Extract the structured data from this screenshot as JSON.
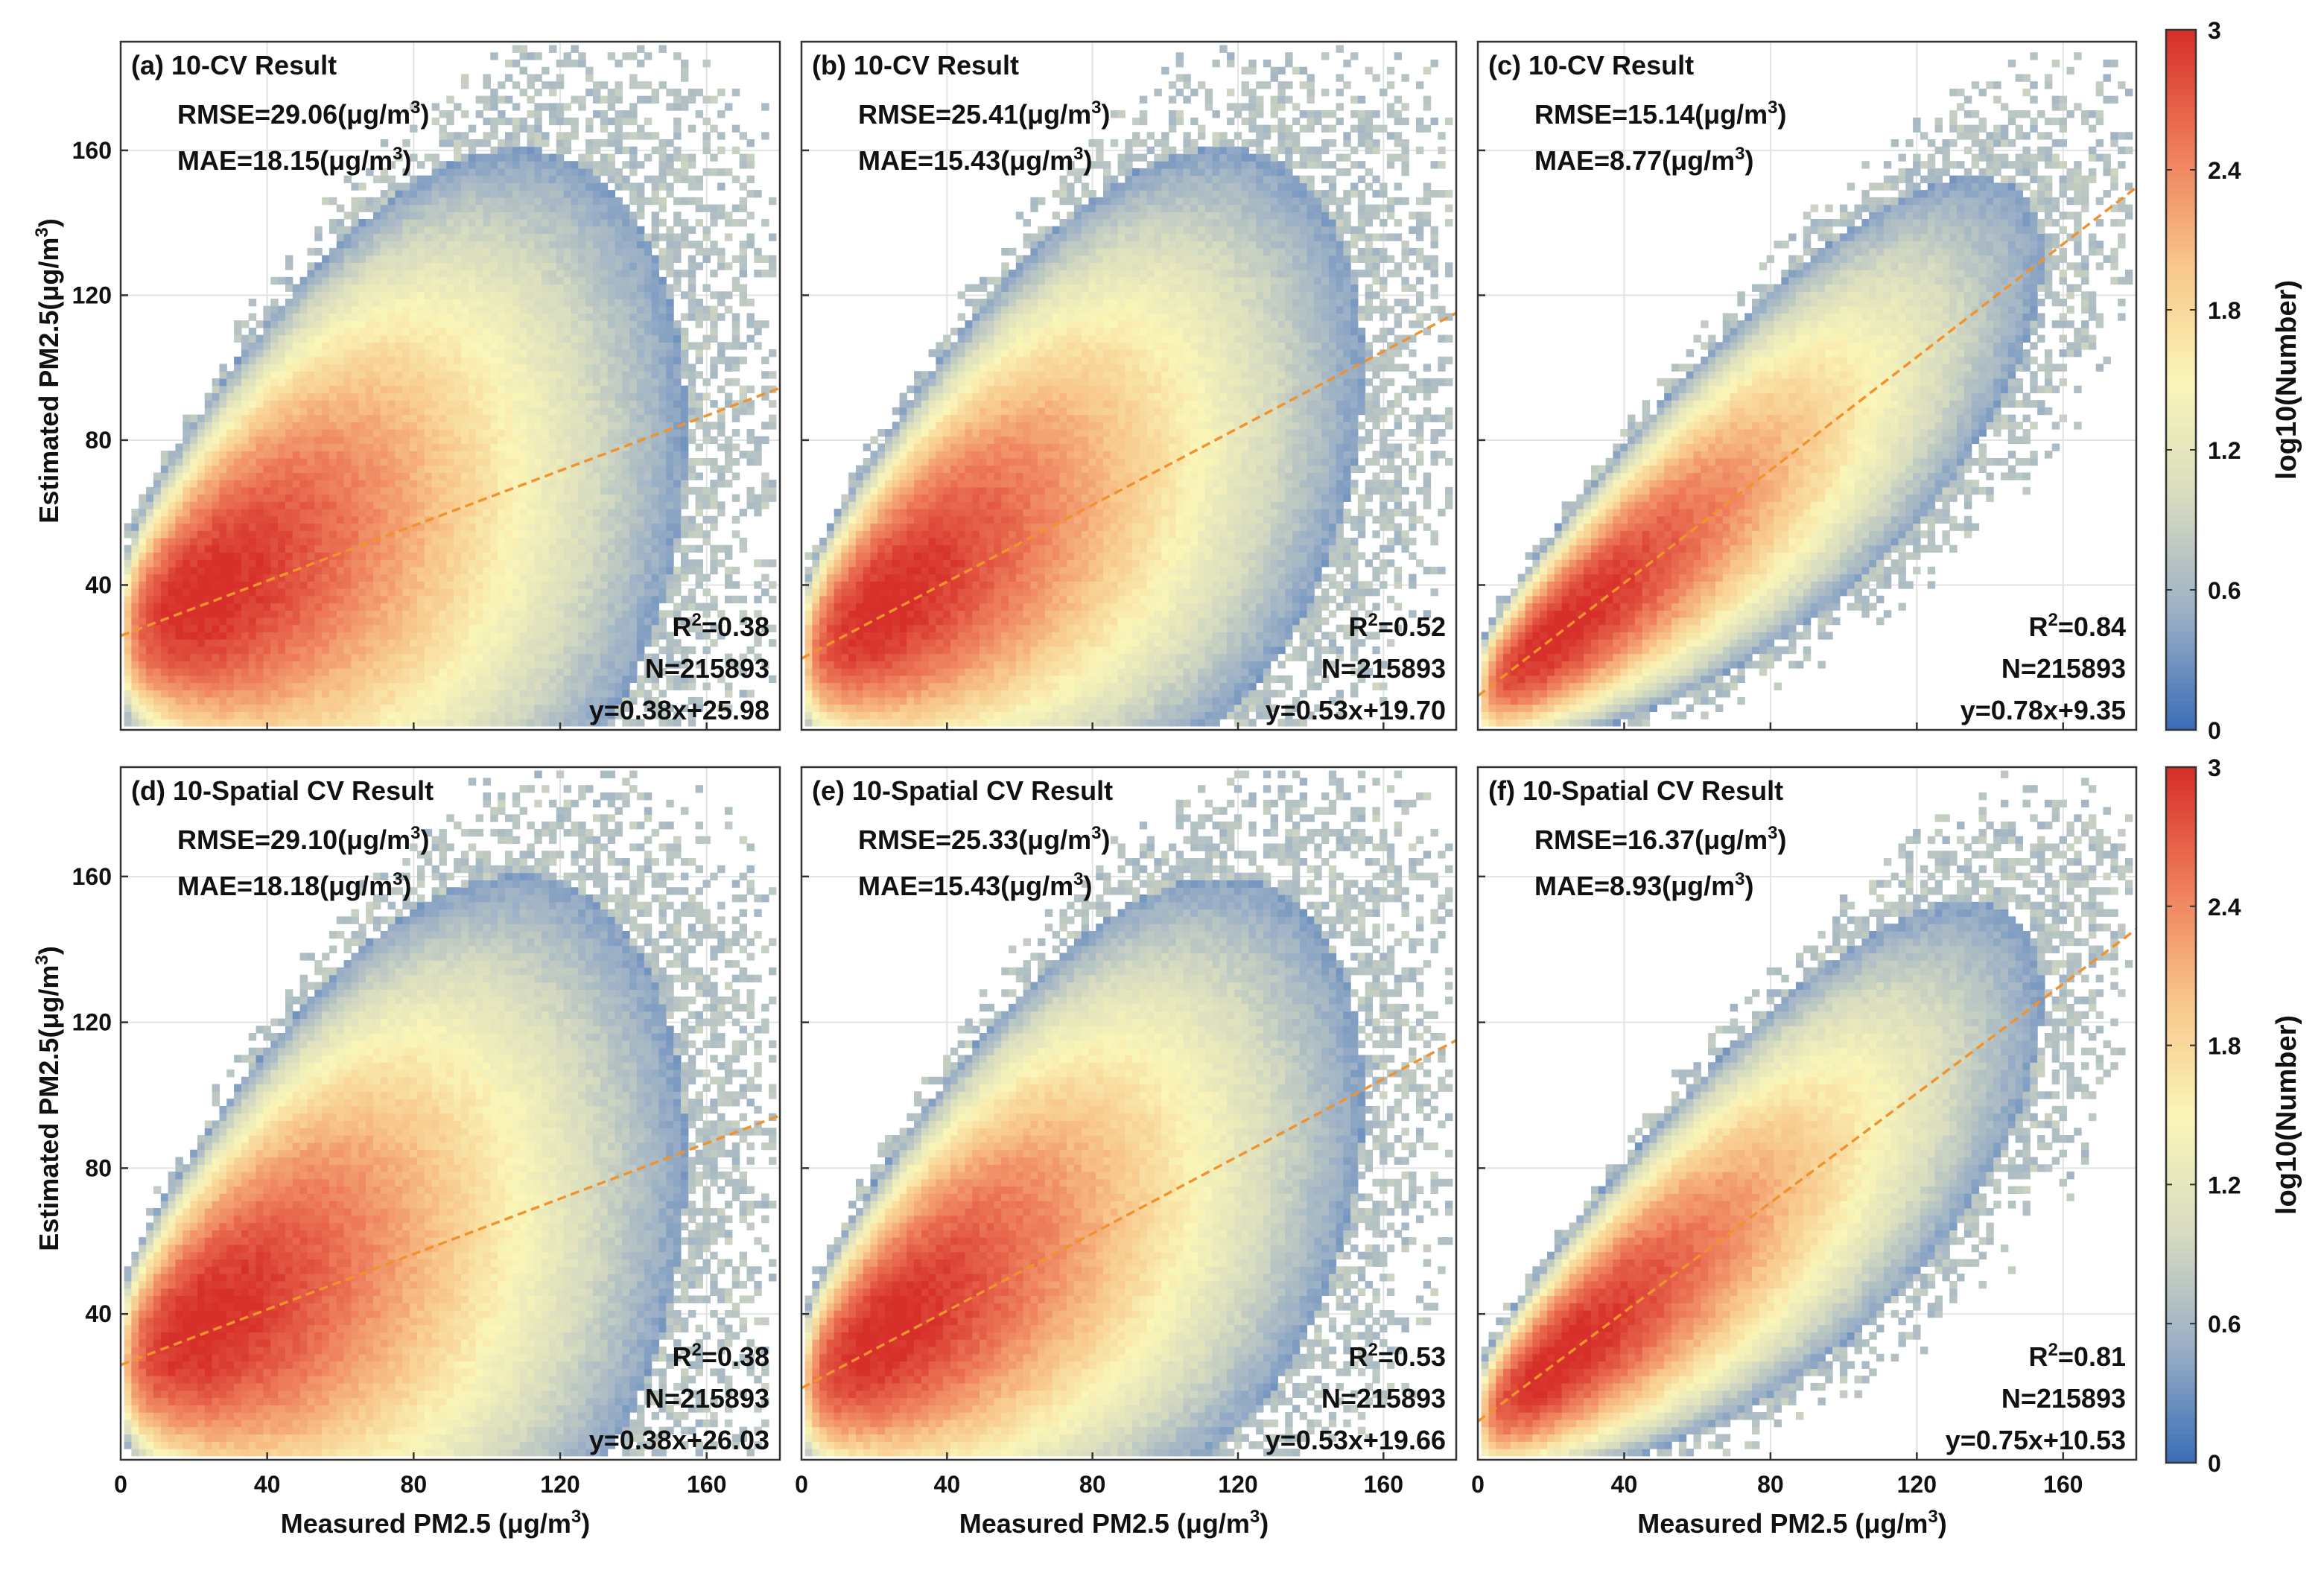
{
  "figure": {
    "colorbar_label": "log10(Number)",
    "colorbar_ticks": [
      "0",
      "0.6",
      "1.2",
      "1.8",
      "2.4",
      "3"
    ],
    "colorbar_range": [
      0,
      3
    ],
    "colormap": [
      "#3b6eb8",
      "#9cb0c6",
      "#d8dcc0",
      "#faf5b8",
      "#f8c68a",
      "#ee7c5a",
      "#d7302a"
    ],
    "fit_line_color": "#f0922e"
  },
  "chart_data": [
    {
      "type": "heatmap",
      "panel": "a",
      "title": "(a) 10-CV Result",
      "rmse": "RMSE=29.06(μg/m",
      "mae": "MAE=18.15(μg/m",
      "r2_value": "=0.38",
      "n": "N=215893",
      "fit_eq": "y=0.38x+25.98",
      "slope": 0.38,
      "intercept": 25.98,
      "r2": 0.38,
      "xlabel": "",
      "ylabel": "Estimated PM2.5(μg/m",
      "xlim": [
        0,
        180
      ],
      "ylim": [
        0,
        190
      ],
      "xticks": [],
      "yticks": [
        "40",
        "80",
        "120",
        "160"
      ]
    },
    {
      "type": "heatmap",
      "panel": "b",
      "title": "(b) 10-CV Result",
      "rmse": "RMSE=25.41(μg/m",
      "mae": "MAE=15.43(μg/m",
      "r2_value": "=0.52",
      "n": "N=215893",
      "fit_eq": "y=0.53x+19.70",
      "slope": 0.53,
      "intercept": 19.7,
      "r2": 0.52,
      "xlabel": "",
      "ylabel": "",
      "xlim": [
        0,
        180
      ],
      "ylim": [
        0,
        190
      ],
      "xticks": [],
      "yticks": []
    },
    {
      "type": "heatmap",
      "panel": "c",
      "title": "(c) 10-CV Result",
      "rmse": "RMSE=15.14(μg/m",
      "mae": "MAE=8.77(μg/m",
      "r2_value": "=0.84",
      "n": "N=215893",
      "fit_eq": "y=0.78x+9.35",
      "slope": 0.78,
      "intercept": 9.35,
      "r2": 0.84,
      "xlabel": "",
      "ylabel": "",
      "xlim": [
        0,
        180
      ],
      "ylim": [
        0,
        190
      ],
      "xticks": [],
      "yticks": []
    },
    {
      "type": "heatmap",
      "panel": "d",
      "title": "(d) 10-Spatial CV Result",
      "rmse": "RMSE=29.10(μg/m",
      "mae": "MAE=18.18(μg/m",
      "r2_value": "=0.38",
      "n": "N=215893",
      "fit_eq": "y=0.38x+26.03",
      "slope": 0.38,
      "intercept": 26.03,
      "r2": 0.38,
      "xlabel": "Measured PM2.5 (μg/m",
      "ylabel": "Estimated PM2.5(μg/m",
      "xlim": [
        0,
        180
      ],
      "ylim": [
        0,
        190
      ],
      "xticks": [
        "0",
        "40",
        "80",
        "120",
        "160"
      ],
      "yticks": [
        "40",
        "80",
        "120",
        "160"
      ]
    },
    {
      "type": "heatmap",
      "panel": "e",
      "title": "(e) 10-Spatial CV Result",
      "rmse": "RMSE=25.33(μg/m",
      "mae": "MAE=15.43(μg/m",
      "r2_value": "=0.53",
      "n": "N=215893",
      "fit_eq": "y=0.53x+19.66",
      "slope": 0.53,
      "intercept": 19.66,
      "r2": 0.53,
      "xlabel": "Measured PM2.5 (μg/m",
      "ylabel": "",
      "xlim": [
        0,
        180
      ],
      "ylim": [
        0,
        190
      ],
      "xticks": [
        "0",
        "40",
        "80",
        "120",
        "160"
      ],
      "yticks": []
    },
    {
      "type": "heatmap",
      "panel": "f",
      "title": "(f) 10-Spatial CV Result",
      "rmse": "RMSE=16.37(μg/m",
      "mae": "MAE=8.93(μg/m",
      "r2_value": "=0.81",
      "n": "N=215893",
      "fit_eq": "y=0.75x+10.53",
      "slope": 0.75,
      "intercept": 10.53,
      "r2": 0.81,
      "xlabel": "Measured PM2.5 (μg/m",
      "ylabel": "",
      "xlim": [
        0,
        180
      ],
      "ylim": [
        0,
        190
      ],
      "xticks": [
        "0",
        "40",
        "80",
        "120",
        "160"
      ],
      "yticks": []
    }
  ]
}
